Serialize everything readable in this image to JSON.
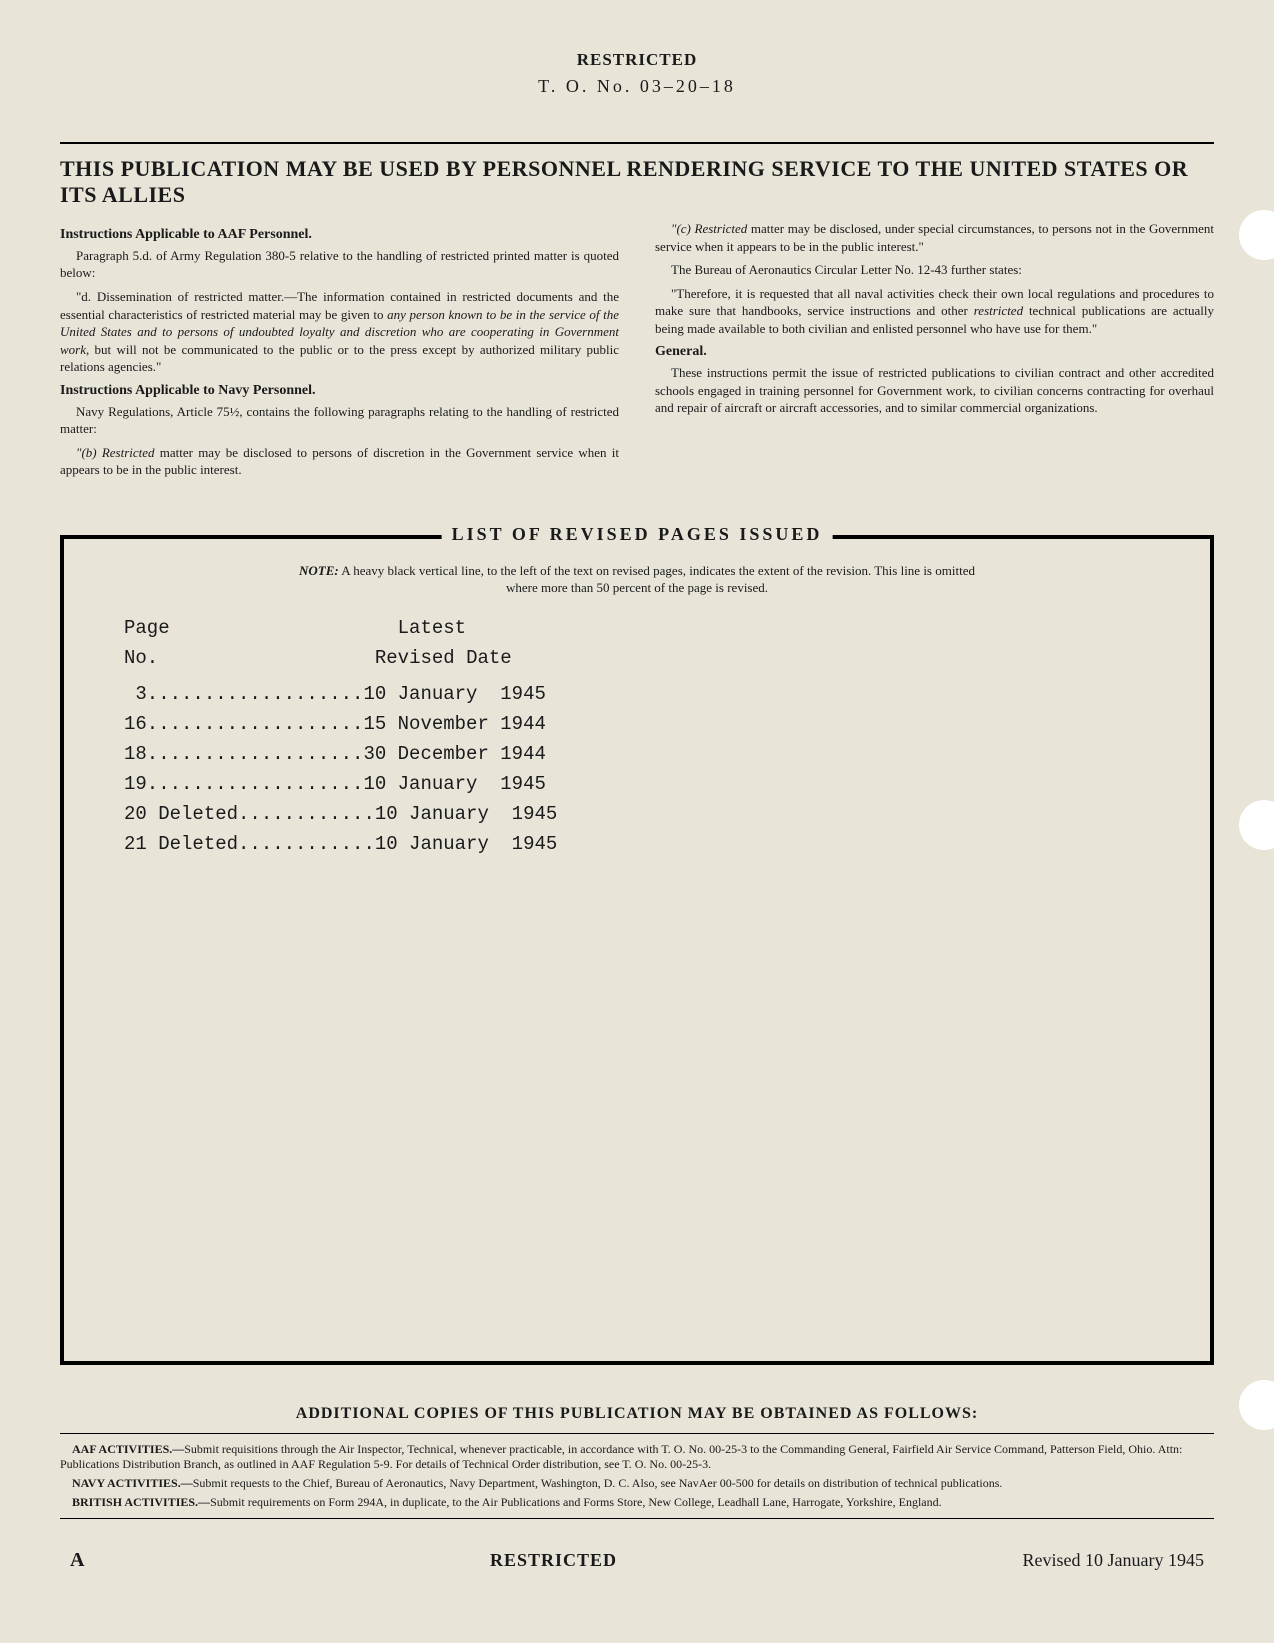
{
  "header": {
    "classification": "RESTRICTED",
    "to_number": "T. O.  No.  03–20–18"
  },
  "banner": "THIS PUBLICATION MAY BE USED BY PERSONNEL RENDERING SERVICE TO THE UNITED STATES OR ITS ALLIES",
  "left_col": {
    "aaf_head": "Instructions Applicable to AAF Personnel.",
    "aaf_p1": "Paragraph 5.d. of Army Regulation 380-5 relative to the handling of restricted printed matter is quoted below:",
    "aaf_p2a": "\"d. Dissemination of restricted matter.—The information contained in restricted documents and the essential characteristics of restricted material may be given to ",
    "aaf_p2b": "any person known to be in the service of the United States and to persons of undoubted loyalty and discretion who are cooperating in Government work,",
    "aaf_p2c": " but will not be communicated to the public or to the press except by authorized military public relations agencies.\"",
    "navy_head": "Instructions Applicable to Navy Personnel.",
    "navy_p1": "Navy Regulations, Article 75½, contains the following paragraphs relating to the handling of restricted matter:",
    "navy_p2a": "\"(b) Restricted",
    "navy_p2b": " matter may be disclosed to persons of discretion in the Government service when it appears to be in the public interest."
  },
  "right_col": {
    "p1a": "\"(c) Restricted",
    "p1b": " matter may be disclosed, under special circumstances, to persons not in the Government service when it appears to be in the public interest.\"",
    "p2": "The Bureau of Aeronautics Circular Letter No. 12-43 further states:",
    "p3a": "\"Therefore, it is requested that all naval activities check their own local regulations and procedures to make sure that handbooks, service instructions and other ",
    "p3b": "restricted",
    "p3c": " technical publications are actually being made available to both civilian and enlisted personnel who have use for them.\"",
    "gen_head": "General.",
    "gen_p1": "These instructions permit the issue of restricted publications to civilian contract and other accredited schools engaged in training personnel for Government work, to civilian concerns contracting for overhaul and repair of aircraft or aircraft accessories, and to similar commercial organizations."
  },
  "revised": {
    "title": "LIST OF REVISED PAGES ISSUED",
    "note_label": "NOTE:",
    "note_text": " A heavy black vertical line, to the left of the text on revised pages, indicates the extent of the revision. This line is omitted where more than 50 percent of the page is revised.",
    "col_page": "Page",
    "col_no": "No.",
    "col_latest": "Latest",
    "col_date": "Revised Date",
    "rows": [
      {
        "page": " 3",
        "suffix": "",
        "dots": "...................",
        "date": "10 January  1945"
      },
      {
        "page": "16",
        "suffix": "",
        "dots": "...................",
        "date": "15 November 1944"
      },
      {
        "page": "18",
        "suffix": "",
        "dots": "...................",
        "date": "30 December 1944"
      },
      {
        "page": "19",
        "suffix": "",
        "dots": "...................",
        "date": "10 January  1945"
      },
      {
        "page": "20",
        "suffix": " Deleted",
        "dots": "............",
        "date": "10 January  1945"
      },
      {
        "page": "21",
        "suffix": " Deleted",
        "dots": "............",
        "date": "10 January  1945"
      }
    ]
  },
  "additional": {
    "title": "ADDITIONAL COPIES OF THIS PUBLICATION MAY BE OBTAINED AS FOLLOWS:",
    "aaf_label": "AAF ACTIVITIES.—",
    "aaf_text": "Submit requisitions through the Air Inspector, Technical, whenever practicable, in accordance with T. O. No. 00-25-3 to the Commanding General, Fairfield Air Service Command, Patterson Field, Ohio. Attn: Publications Distribution Branch, as outlined in AAF Regulation 5-9. For details of Technical Order distribution, see T. O. No. 00-25-3.",
    "navy_label": "NAVY ACTIVITIES.—",
    "navy_text": "Submit requests to the Chief, Bureau of Aeronautics, Navy Department, Washington, D. C. Also, see NavAer 00-500 for details on distribution of technical publications.",
    "brit_label": "BRITISH ACTIVITIES.—",
    "brit_text": "Submit requirements on Form 294A, in duplicate, to the Air Publications and Forms Store, New College, Leadhall Lane, Harrogate, Yorkshire, England."
  },
  "footer": {
    "letter": "A",
    "classification": "RESTRICTED",
    "revised": "Revised 10 January 1945"
  },
  "style": {
    "background_color": "#e8e4d8",
    "text_color": "#1a1a1a",
    "punch_hole_positions": [
      210,
      800,
      1380
    ]
  }
}
